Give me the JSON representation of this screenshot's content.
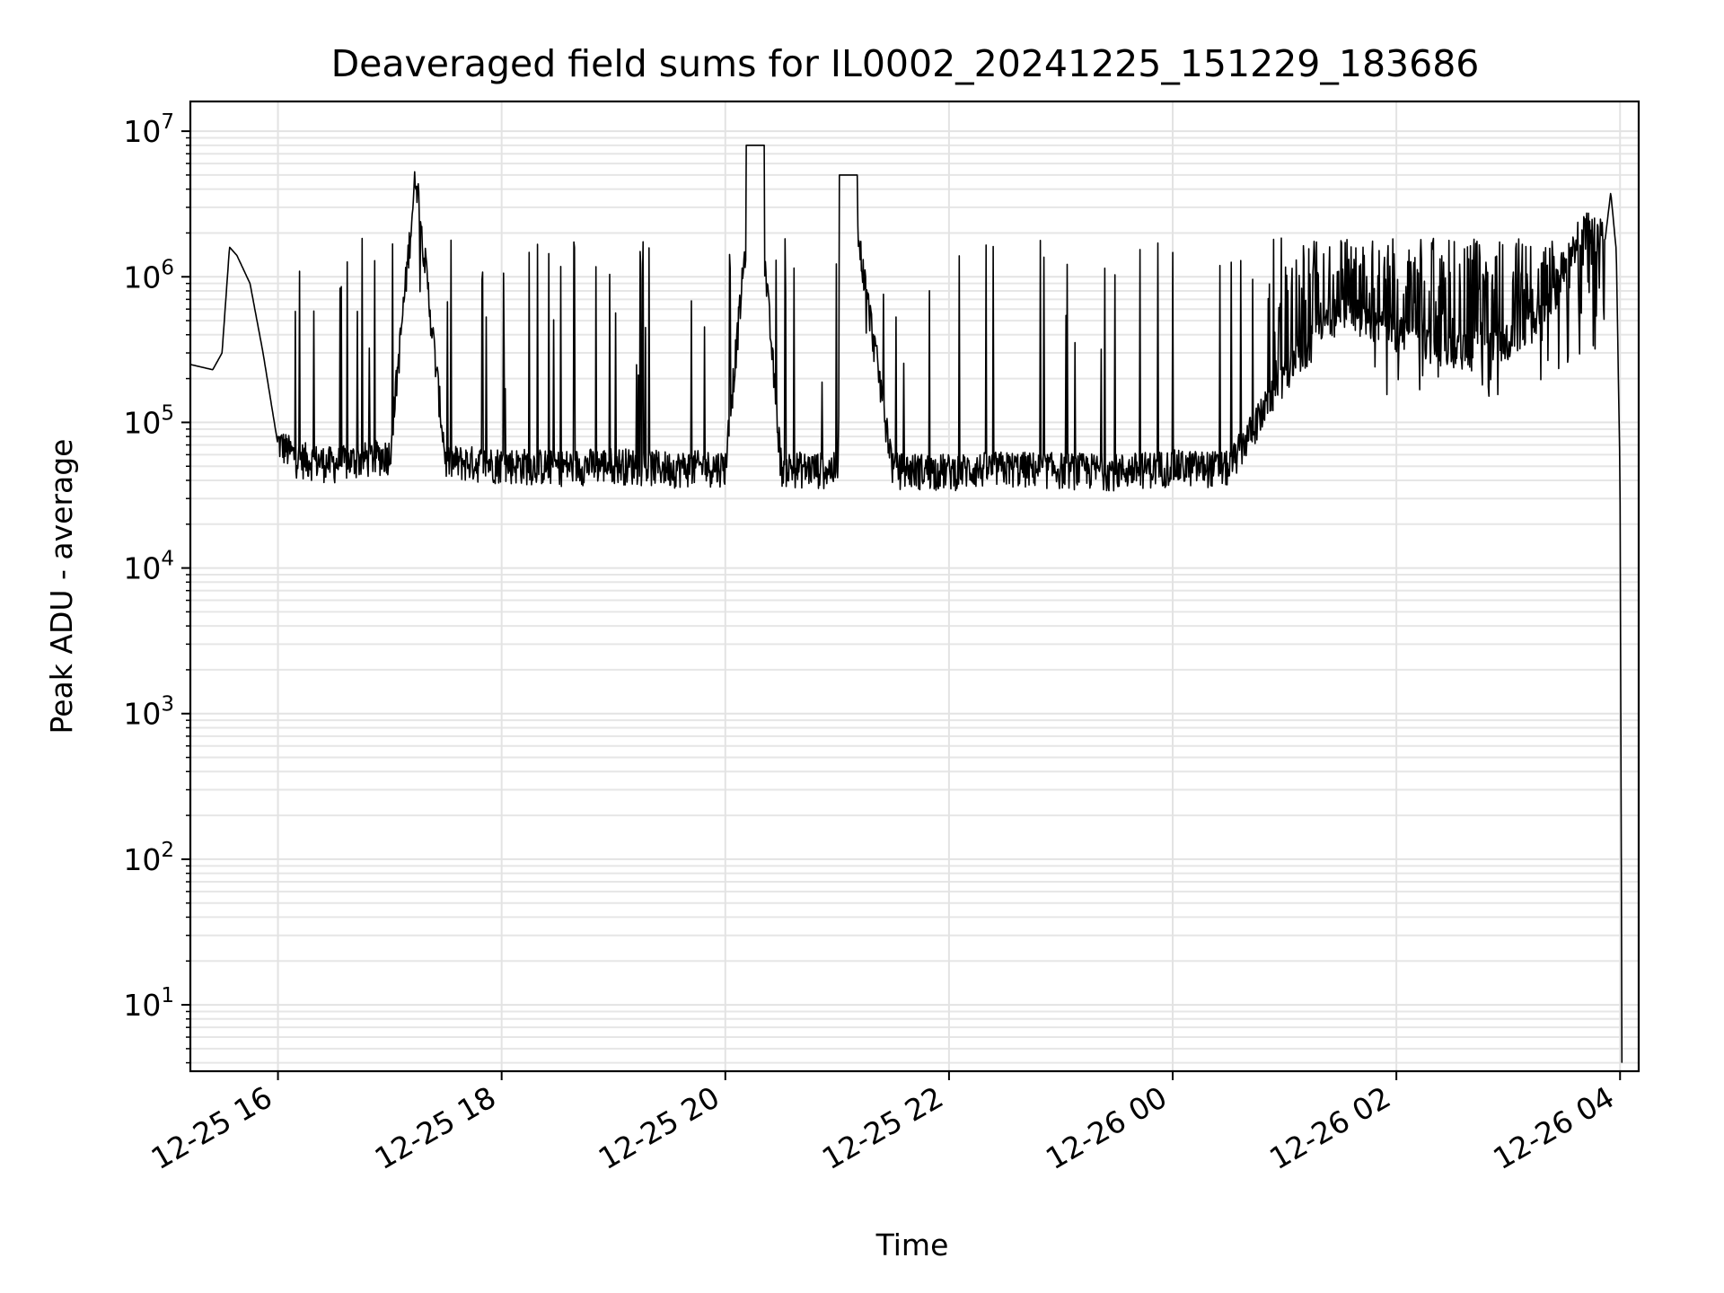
{
  "chart_data": {
    "type": "line",
    "title": "Deaveraged field sums for IL0002_20241225_151229_183686",
    "xlabel": "Time",
    "ylabel": "Peak ADU - average",
    "y_scale": "log",
    "ylim": [
      3.5,
      16000000
    ],
    "xlim": [
      "2024-12-25 15:13",
      "2024-12-26 04:10"
    ],
    "grid": true,
    "x_ticks": [
      "12-25 16",
      "12-25 18",
      "12-25 20",
      "12-25 22",
      "12-26 00",
      "12-26 02",
      "12-26 04"
    ],
    "y_ticks": [
      {
        "base": "10",
        "exp": "1"
      },
      {
        "base": "10",
        "exp": "2"
      },
      {
        "base": "10",
        "exp": "3"
      },
      {
        "base": "10",
        "exp": "4"
      },
      {
        "base": "10",
        "exp": "5"
      },
      {
        "base": "10",
        "exp": "6"
      },
      {
        "base": "10",
        "exp": "7"
      }
    ],
    "series": [
      {
        "color": "#000000",
        "x": [
          "2024-12-25 15:13",
          "2024-12-25 15:25",
          "2024-12-25 15:30",
          "2024-12-25 15:34",
          "2024-12-25 15:38",
          "2024-12-25 15:45",
          "2024-12-25 15:52",
          "2024-12-25 16:00",
          "2024-12-25 16:10",
          "2024-12-25 16:30",
          "2024-12-25 17:00",
          "2024-12-25 17:14",
          "2024-12-25 17:30",
          "2024-12-25 18:00",
          "2024-12-25 18:30",
          "2024-12-25 19:00",
          "2024-12-25 19:30",
          "2024-12-25 20:00",
          "2024-12-25 20:16",
          "2024-12-25 20:30",
          "2024-12-25 21:00",
          "2024-12-25 21:06",
          "2024-12-25 21:30",
          "2024-12-25 22:00",
          "2024-12-25 22:30",
          "2024-12-25 23:00",
          "2024-12-25 23:30",
          "2024-12-26 00:00",
          "2024-12-26 00:30",
          "2024-12-26 01:00",
          "2024-12-26 01:30",
          "2024-12-26 02:00",
          "2024-12-26 02:30",
          "2024-12-26 03:00",
          "2024-12-26 03:20",
          "2024-12-26 03:40",
          "2024-12-26 03:52",
          "2024-12-26 03:55",
          "2024-12-26 03:58",
          "2024-12-26 04:00",
          "2024-12-26 04:01"
        ],
        "y": [
          250000,
          230000,
          300000,
          1600000,
          1400000,
          900000,
          300000,
          70000,
          55000,
          50000,
          58000,
          5000000,
          52000,
          50000,
          48000,
          50000,
          47000,
          48000,
          8000000,
          47000,
          46000,
          5000000,
          46000,
          45000,
          47000,
          46000,
          45000,
          48000,
          47000,
          200000,
          600000,
          400000,
          300000,
          350000,
          500000,
          2200000,
          1800000,
          3800000,
          1500000,
          40000,
          4
        ]
      }
    ]
  }
}
